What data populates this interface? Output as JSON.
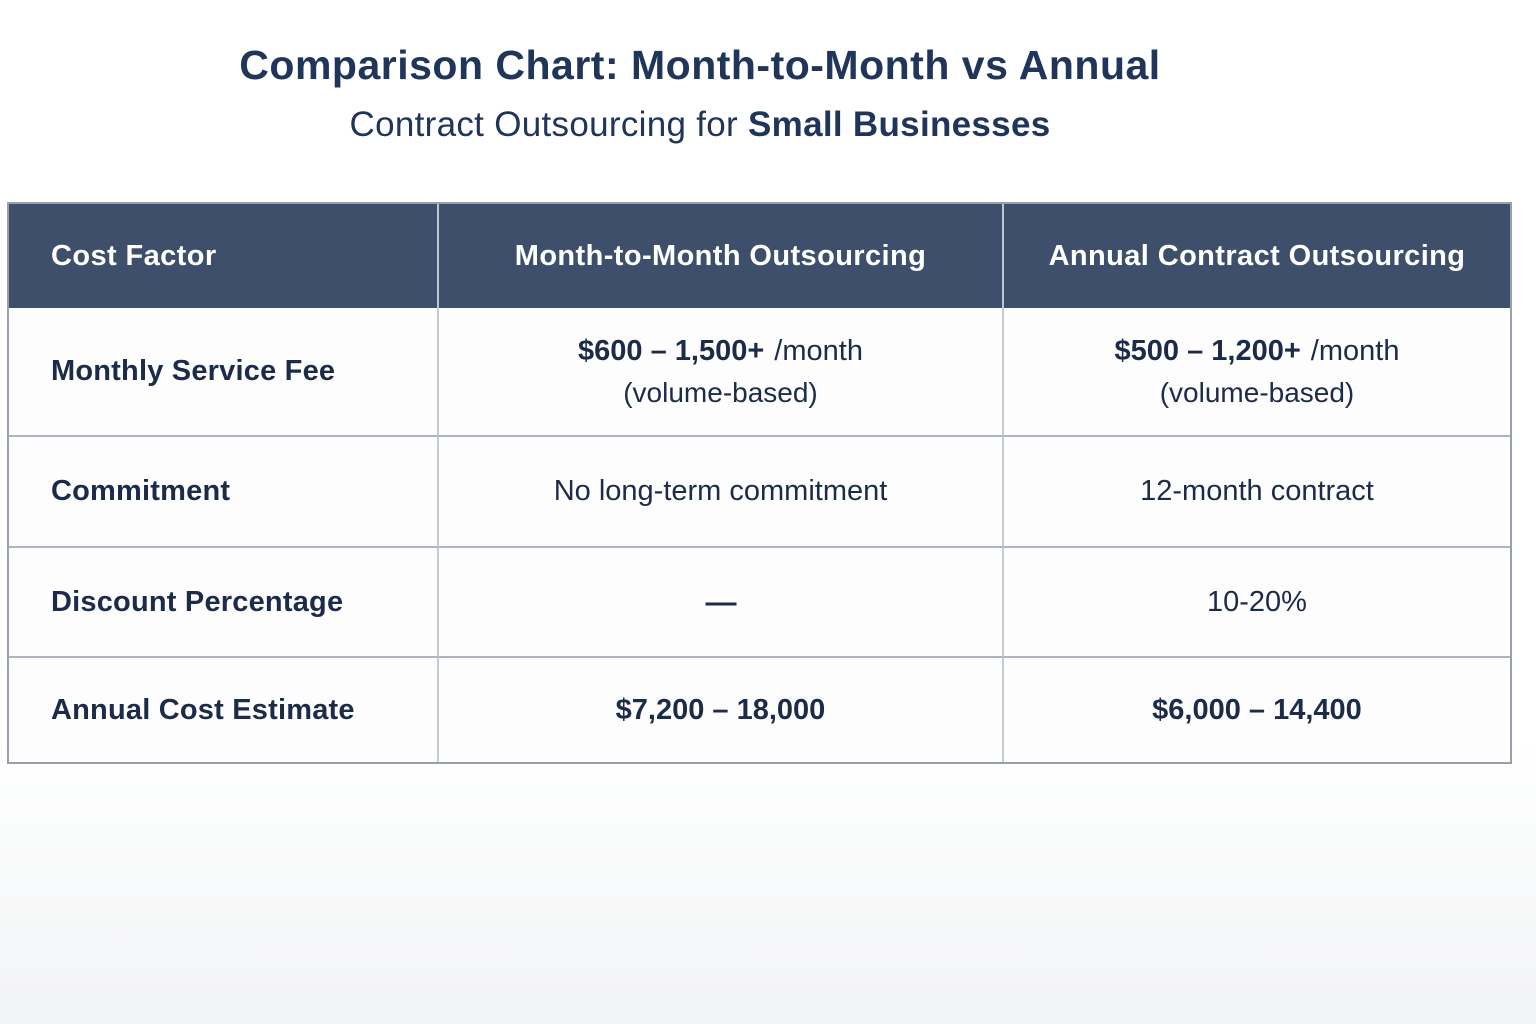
{
  "title": {
    "line1": "Comparison Chart: Month-to-Month vs Annual",
    "line2_regular": "Contract Outsourcing for ",
    "line2_bold": "Small Businesses"
  },
  "table": {
    "headers": [
      "Cost Factor",
      "Month-to-Month Outsourcing",
      "Annual Contract Outsourcing"
    ],
    "rows": [
      {
        "factor": "Monthly Service Fee",
        "mtm": {
          "value": "$600 – 1,500+",
          "suffix": "/month",
          "note": "(volume-based)"
        },
        "annual": {
          "value": "$500 – 1,200+",
          "suffix": "/month",
          "note": "(volume-based)"
        }
      },
      {
        "factor": "Commitment",
        "mtm": {
          "value": "No long-term commitment"
        },
        "annual": {
          "value": "12-month contract"
        }
      },
      {
        "factor": "Discount Percentage",
        "mtm": {
          "value": "—"
        },
        "annual": {
          "value": "10-20%"
        }
      },
      {
        "factor": "Annual Cost Estimate",
        "mtm": {
          "value": "$7,200 – 18,000"
        },
        "annual": {
          "value": "$6,000 – 14,400"
        }
      }
    ]
  },
  "colors": {
    "header_background": "#3d4f6b",
    "header_text": "#ffffff",
    "body_text": "#1c2b49",
    "title_text": "#20355a",
    "border_outer": "#97a0ac",
    "border_inner": "#aeb5c0"
  },
  "chart_data": {
    "type": "table",
    "title": "Comparison Chart: Month-to-Month vs Annual Contract Outsourcing for Small Businesses",
    "columns": [
      "Cost Factor",
      "Month-to-Month Outsourcing",
      "Annual Contract Outsourcing"
    ],
    "rows": [
      [
        "Monthly Service Fee",
        "$600 – 1,500+ /month (volume-based)",
        "$500 – 1,200+ /month (volume-based)"
      ],
      [
        "Commitment",
        "No long-term commitment",
        "12-month contract"
      ],
      [
        "Discount Percentage",
        "—",
        "10-20%"
      ],
      [
        "Annual Cost Estimate",
        "$7,200 – 18,000",
        "$6,000 – 14,400"
      ]
    ]
  }
}
